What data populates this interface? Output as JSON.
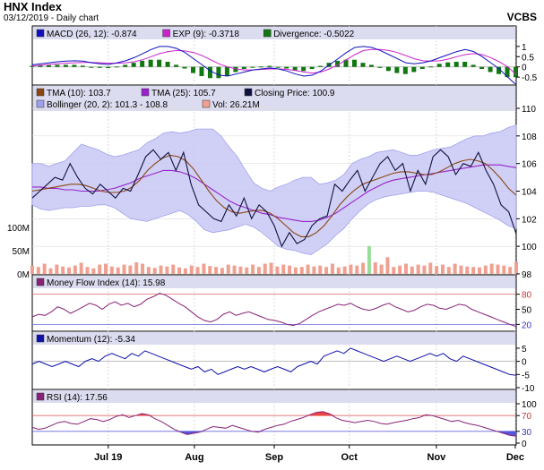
{
  "header": {
    "title": "HNX Index",
    "subtitle": "03/12/2019 - Daily chart",
    "source": "VCBS"
  },
  "chart_data": [
    {
      "type": "line",
      "panel": "macd",
      "legend": [
        {
          "label": "MACD (26, 12): -0.874",
          "color": "#1010c0"
        },
        {
          "label": "EXP (9): -0.3718",
          "color": "#cc22cc"
        },
        {
          "label": "Divergence: -0.5022",
          "color": "#117711"
        }
      ],
      "yticks": [
        "1",
        "0.5",
        "0",
        "-0.5"
      ],
      "ylim": [
        -0.8,
        1.3
      ],
      "macd": [
        0.1,
        0.15,
        0.2,
        0.25,
        0.28,
        0.3,
        0.28,
        0.2,
        0.15,
        0.12,
        0.2,
        0.3,
        0.45,
        0.65,
        0.85,
        1.0,
        1.0,
        0.9,
        0.7,
        0.4,
        0.1,
        -0.2,
        -0.4,
        -0.45,
        -0.35,
        -0.25,
        -0.15,
        -0.1,
        -0.05,
        -0.1,
        -0.2,
        -0.35,
        -0.45,
        -0.4,
        -0.2,
        0.1,
        0.4,
        0.7,
        0.95,
        1.0,
        0.95,
        0.8,
        0.6,
        0.4,
        0.2,
        0.15,
        0.2,
        0.3,
        0.45,
        0.6,
        0.75,
        0.85,
        0.75,
        0.5,
        0.2,
        -0.1,
        -0.5,
        -0.874
      ],
      "signal": [
        0.05,
        0.08,
        0.12,
        0.15,
        0.18,
        0.2,
        0.22,
        0.22,
        0.2,
        0.18,
        0.18,
        0.2,
        0.25,
        0.35,
        0.5,
        0.65,
        0.75,
        0.8,
        0.78,
        0.7,
        0.55,
        0.35,
        0.15,
        0.0,
        -0.1,
        -0.15,
        -0.15,
        -0.12,
        -0.1,
        -0.1,
        -0.12,
        -0.18,
        -0.25,
        -0.3,
        -0.25,
        -0.1,
        0.1,
        0.35,
        0.6,
        0.8,
        0.85,
        0.85,
        0.8,
        0.7,
        0.55,
        0.4,
        0.3,
        0.28,
        0.3,
        0.38,
        0.5,
        0.6,
        0.65,
        0.6,
        0.45,
        0.25,
        0.0,
        -0.3718
      ]
    },
    {
      "type": "line",
      "panel": "price",
      "legend": [
        {
          "label": "TMA (10): 103.7",
          "color": "#8b4513"
        },
        {
          "label": "TMA (25): 105.7",
          "color": "#9922cc"
        },
        {
          "label": "Closing Price: 100.9",
          "color": "#101040"
        },
        {
          "label": "Bollinger (20, 2): 101.3 - 108.8",
          "color": "#a0a0ee"
        },
        {
          "label": "Vol: 26.21M",
          "color": "#f0a090"
        }
      ],
      "yticks": [
        "110",
        "108",
        "106",
        "104",
        "102",
        "100",
        "98"
      ],
      "ylim": [
        98,
        110
      ],
      "volume_ticks": [
        "100M",
        "50M",
        "0M"
      ],
      "close": [
        103.5,
        104.0,
        104.5,
        105.0,
        104.8,
        106.0,
        105.0,
        104.2,
        103.8,
        104.5,
        104.0,
        103.5,
        104.2,
        104.0,
        105.2,
        106.5,
        107.0,
        106.3,
        106.8,
        105.5,
        106.8,
        104.5,
        103.0,
        102.5,
        102.0,
        101.8,
        103.0,
        102.2,
        103.5,
        102.0,
        103.0,
        102.5,
        101.5,
        100.0,
        101.0,
        100.2,
        100.5,
        101.5,
        102.0,
        102.2,
        104.5,
        104.0,
        104.8,
        105.5,
        104.0,
        105.0,
        106.0,
        106.5,
        105.5,
        106.0,
        104.0,
        105.5,
        104.5,
        106.5,
        107.0,
        106.5,
        105.2,
        106.0,
        105.8,
        106.8,
        105.5,
        104.5,
        103.0,
        102.5,
        100.9
      ],
      "tma10": [
        104.0,
        104.1,
        104.2,
        104.3,
        104.4,
        104.5,
        104.5,
        104.4,
        104.2,
        104.0,
        103.9,
        103.9,
        104.0,
        104.3,
        104.8,
        105.5,
        106.0,
        106.4,
        106.6,
        106.5,
        106.2,
        105.6,
        104.8,
        104.0,
        103.3,
        102.8,
        102.5,
        102.4,
        102.5,
        102.6,
        102.6,
        102.4,
        102.0,
        101.5,
        101.0,
        100.7,
        100.7,
        101.0,
        101.5,
        102.2,
        103.0,
        103.6,
        104.1,
        104.5,
        104.7,
        104.9,
        105.1,
        105.3,
        105.4,
        105.4,
        105.3,
        105.2,
        105.2,
        105.4,
        105.7,
        106.0,
        106.2,
        106.3,
        106.2,
        106.0,
        105.5,
        104.9,
        104.2,
        103.7
      ],
      "tma25": [
        104.3,
        104.3,
        104.2,
        104.2,
        104.1,
        104.1,
        104.0,
        104.0,
        104.0,
        104.1,
        104.2,
        104.4,
        104.6,
        104.9,
        105.1,
        105.3,
        105.5,
        105.5,
        105.4,
        105.2,
        104.9,
        104.5,
        104.1,
        103.7,
        103.3,
        103.0,
        102.8,
        102.6,
        102.4,
        102.3,
        102.1,
        102.0,
        101.9,
        101.8,
        101.8,
        101.9,
        102.1,
        102.4,
        102.8,
        103.2,
        103.6,
        104.0,
        104.3,
        104.6,
        104.8,
        104.9,
        105.0,
        105.1,
        105.2,
        105.3,
        105.4,
        105.5,
        105.6,
        105.7,
        105.8,
        105.9,
        105.9,
        105.9,
        105.8,
        105.7
      ],
      "bb_upper": [
        106.0,
        106.0,
        105.8,
        106.0,
        106.2,
        106.8,
        107.4,
        107.2,
        107.0,
        106.7,
        106.5,
        106.6,
        106.8,
        107.0,
        107.5,
        107.8,
        108.2,
        108.3,
        108.2,
        108.3,
        108.5,
        108.5,
        108.5,
        108.0,
        107.2,
        106.5,
        105.5,
        104.6,
        104.2,
        104.0,
        104.3,
        104.5,
        104.8,
        105.0,
        105.0,
        104.5,
        104.6,
        104.8,
        105.2,
        106.0,
        106.3,
        106.5,
        106.8,
        106.9,
        107.0,
        106.8,
        106.6,
        106.6,
        106.8,
        107.0,
        107.1,
        107.2,
        107.5,
        107.8,
        108.0,
        108.0,
        108.2,
        108.3,
        108.6,
        108.8
      ],
      "bb_lower": [
        103.0,
        102.7,
        102.6,
        102.7,
        102.8,
        102.8,
        102.9,
        102.9,
        103.0,
        103.0,
        102.8,
        102.4,
        102.0,
        101.9,
        101.8,
        102.0,
        102.2,
        102.4,
        102.6,
        102.3,
        101.8,
        101.2,
        101.0,
        101.1,
        101.2,
        101.4,
        101.6,
        101.4,
        101.0,
        100.5,
        100.0,
        99.8,
        99.7,
        99.5,
        99.4,
        99.8,
        100.2,
        100.8,
        101.3,
        102.0,
        102.6,
        103.1,
        103.4,
        103.6,
        103.7,
        103.8,
        103.9,
        104.0,
        104.0,
        103.9,
        103.7,
        103.5,
        103.3,
        103.1,
        102.8,
        102.5,
        102.2,
        101.9,
        101.5,
        101.3
      ],
      "volume_m": [
        18,
        15,
        22,
        12,
        20,
        16,
        14,
        18,
        24,
        15,
        12,
        20,
        22,
        16,
        14,
        20,
        18,
        25,
        22,
        15,
        13,
        18,
        16,
        20,
        14,
        12,
        18,
        15,
        22,
        17,
        15,
        13,
        20,
        18,
        16,
        14,
        20,
        15,
        22,
        24,
        16,
        20,
        18,
        14,
        15,
        20,
        16,
        18,
        15,
        22,
        14,
        16,
        20,
        18,
        24,
        60,
        25,
        20,
        36,
        15,
        18,
        22,
        16,
        20,
        18,
        24,
        17,
        20,
        15,
        22,
        18,
        16,
        15,
        14,
        18,
        22,
        20,
        18,
        15,
        26
      ]
    },
    {
      "type": "line",
      "panel": "mfi",
      "legend": [
        {
          "label": "Money Flow Index (14): 15.98",
          "color": "#882277"
        }
      ],
      "yticks": [
        "80",
        "50",
        "20"
      ],
      "ylim": [
        10,
        90
      ],
      "values": [
        35,
        40,
        38,
        45,
        55,
        50,
        42,
        48,
        55,
        62,
        58,
        50,
        60,
        65,
        58,
        62,
        55,
        60,
        70,
        75,
        82,
        78,
        70,
        62,
        55,
        45,
        35,
        28,
        25,
        30,
        40,
        45,
        38,
        42,
        45,
        40,
        35,
        30,
        28,
        25,
        20,
        18,
        22,
        30,
        38,
        45,
        50,
        55,
        60,
        58,
        62,
        55,
        50,
        48,
        52,
        58,
        62,
        55,
        50,
        45,
        48,
        55,
        60,
        58,
        52,
        50,
        55,
        60,
        58,
        50,
        45,
        40,
        35,
        30,
        25,
        20,
        15.98
      ]
    },
    {
      "type": "line",
      "panel": "momentum",
      "legend": [
        {
          "label": "Momentum (12): -5.34",
          "color": "#1010aa"
        }
      ],
      "yticks": [
        "5",
        "0",
        "-5",
        "-10"
      ],
      "ylim": [
        -10,
        6
      ],
      "values": [
        -1,
        0,
        -1,
        -2,
        -1,
        0,
        -1,
        -2,
        0,
        1,
        0,
        2,
        3,
        2,
        1,
        3,
        2,
        4,
        3,
        2,
        1,
        0,
        -1,
        -2,
        -3,
        -2,
        -4,
        -3,
        -5,
        -4,
        -3,
        -2,
        -3,
        -2,
        -3,
        -4,
        -3,
        -2,
        -3,
        -4,
        -2,
        -1,
        0,
        -1,
        2,
        3,
        4,
        3,
        5,
        4,
        3,
        2,
        1,
        0,
        1,
        2,
        1,
        0,
        1,
        2,
        3,
        2,
        3,
        1,
        0,
        2,
        1,
        0,
        -1,
        -2,
        -3,
        -4,
        -5,
        -5.34
      ]
    },
    {
      "type": "line",
      "panel": "rsi",
      "legend": [
        {
          "label": "RSI (14): 17.56",
          "color": "#882277"
        }
      ],
      "yticks": [
        "100",
        "70",
        "30",
        "0"
      ],
      "ylim": [
        0,
        100
      ],
      "values": [
        40,
        35,
        38,
        45,
        52,
        55,
        50,
        48,
        55,
        62,
        60,
        55,
        60,
        68,
        72,
        65,
        70,
        75,
        72,
        62,
        55,
        45,
        35,
        28,
        22,
        25,
        28,
        35,
        42,
        40,
        38,
        45,
        40,
        35,
        30,
        28,
        35,
        40,
        45,
        48,
        55,
        60,
        65,
        72,
        78,
        80,
        75,
        65,
        58,
        55,
        52,
        55,
        58,
        55,
        50,
        48,
        52,
        55,
        58,
        62,
        65,
        72,
        70,
        65,
        60,
        55,
        58,
        52,
        48,
        45,
        40,
        35,
        30,
        25,
        20,
        17.56
      ]
    }
  ],
  "x_axis": {
    "ticks": [
      "Jul 19",
      "Aug",
      "Sep",
      "Oct",
      "Nov",
      "Dec"
    ]
  }
}
